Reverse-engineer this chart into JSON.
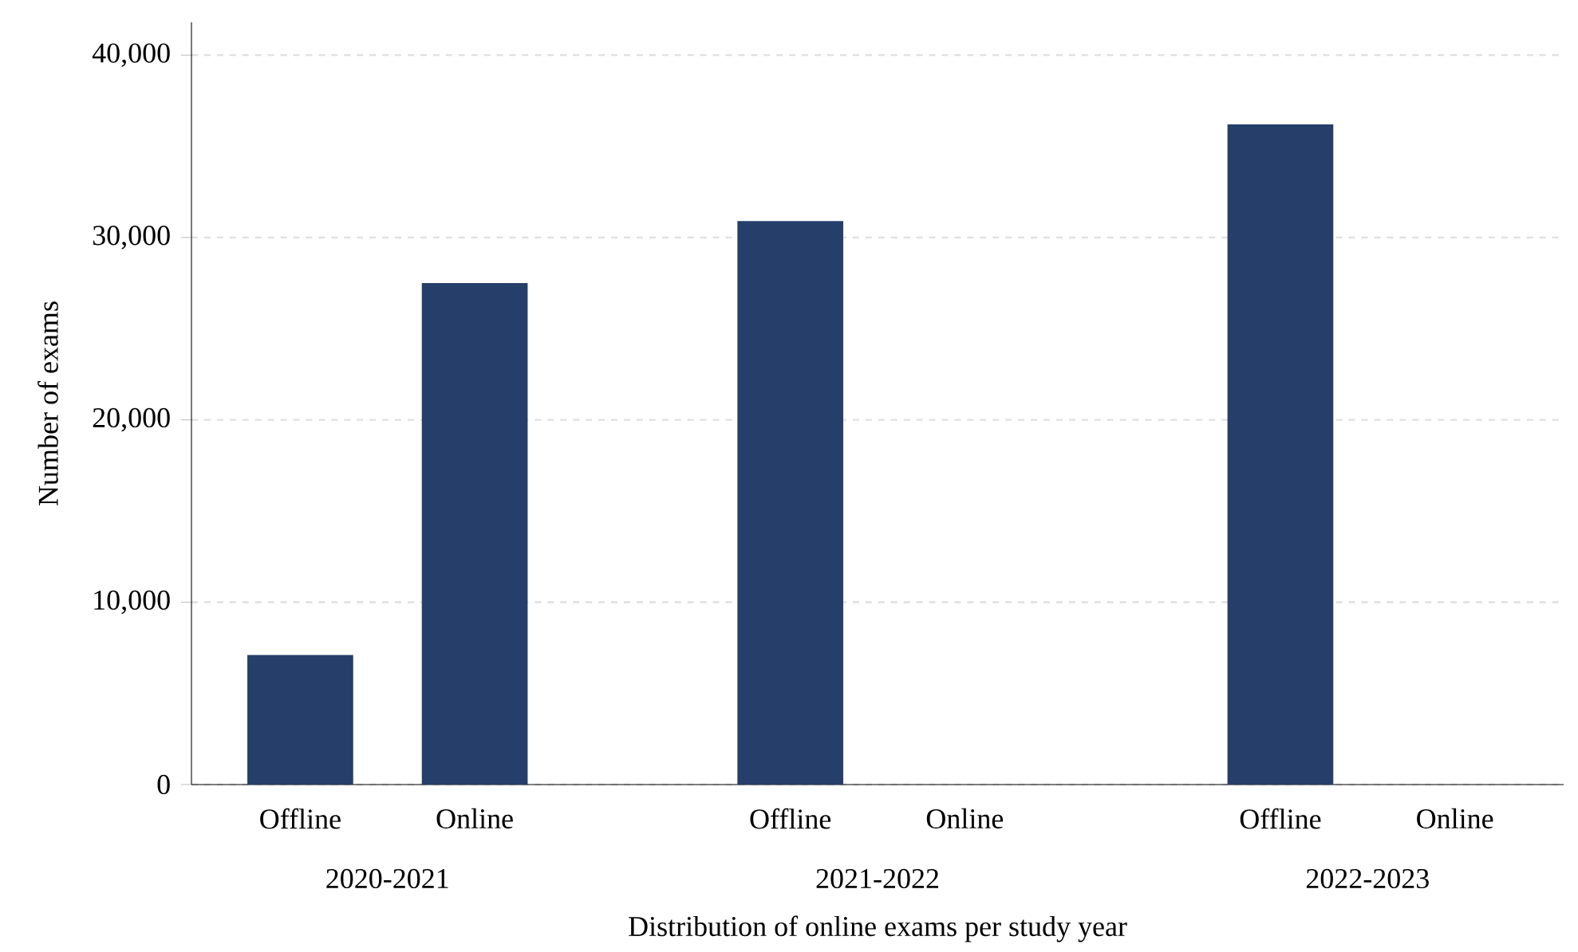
{
  "chart_data": {
    "type": "bar",
    "xlabel": "Distribution of online exams per study year",
    "ylabel": "Number of exams",
    "categories": [
      "2020-2021",
      "2021-2022",
      "2022-2023"
    ],
    "series": [
      {
        "name": "Offline",
        "color": "#263f6a",
        "values": [
          7100,
          30900,
          36200
        ]
      },
      {
        "name": "Online",
        "color": "#263f6a",
        "values": [
          27500,
          0,
          0
        ]
      }
    ],
    "ylim": [
      0,
      41800
    ],
    "yticks": [
      {
        "value": 0,
        "label": "0"
      },
      {
        "value": 10000,
        "label": "10,000"
      },
      {
        "value": 20000,
        "label": "20,000"
      },
      {
        "value": 30000,
        "label": "30,000"
      },
      {
        "value": 40000,
        "label": "40,000"
      }
    ],
    "grid": "y",
    "legend": false
  }
}
